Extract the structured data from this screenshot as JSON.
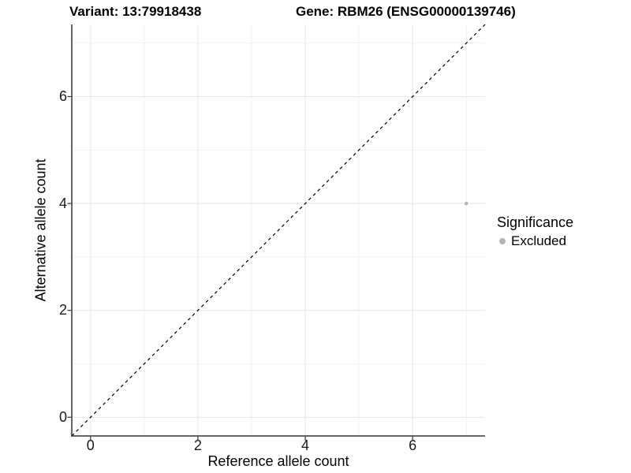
{
  "titles": {
    "variant": "Variant: 13:79918438",
    "gene": "Gene: RBM26 (ENSG00000139746)"
  },
  "legend": {
    "title": "Significance",
    "items": [
      {
        "label": "Excluded",
        "color": "#b4b4b4"
      }
    ]
  },
  "chart_data": {
    "type": "scatter",
    "title": "Variant: 13:79918438 | Gene: RBM26 (ENSG00000139746)",
    "xlabel": "Reference allele count",
    "ylabel": "Alternative allele count",
    "xlim": [
      -0.35,
      7.35
    ],
    "ylim": [
      -0.35,
      7.35
    ],
    "x_ticks": [
      0,
      2,
      4,
      6
    ],
    "y_ticks": [
      0,
      2,
      4,
      6
    ],
    "grid_x": [
      0,
      1,
      2,
      3,
      4,
      5,
      6,
      7
    ],
    "grid_y": [
      0,
      1,
      2,
      3,
      4,
      5,
      6,
      7
    ],
    "grid": "on",
    "legend_position": "right",
    "series": [
      {
        "name": "Excluded",
        "color": "#b4b4b4",
        "points": [
          {
            "x": 7,
            "y": 4
          }
        ]
      }
    ],
    "reference_line": {
      "type": "identity",
      "style": "dashed",
      "color": "#000000"
    }
  },
  "colors": {
    "background": "#ffffff",
    "grid_major": "#e7e7e7",
    "grid_minor": "#f0f0f0",
    "axis_line": "#333333",
    "tick_mark": "#333333",
    "point": "#b4b4b4"
  }
}
